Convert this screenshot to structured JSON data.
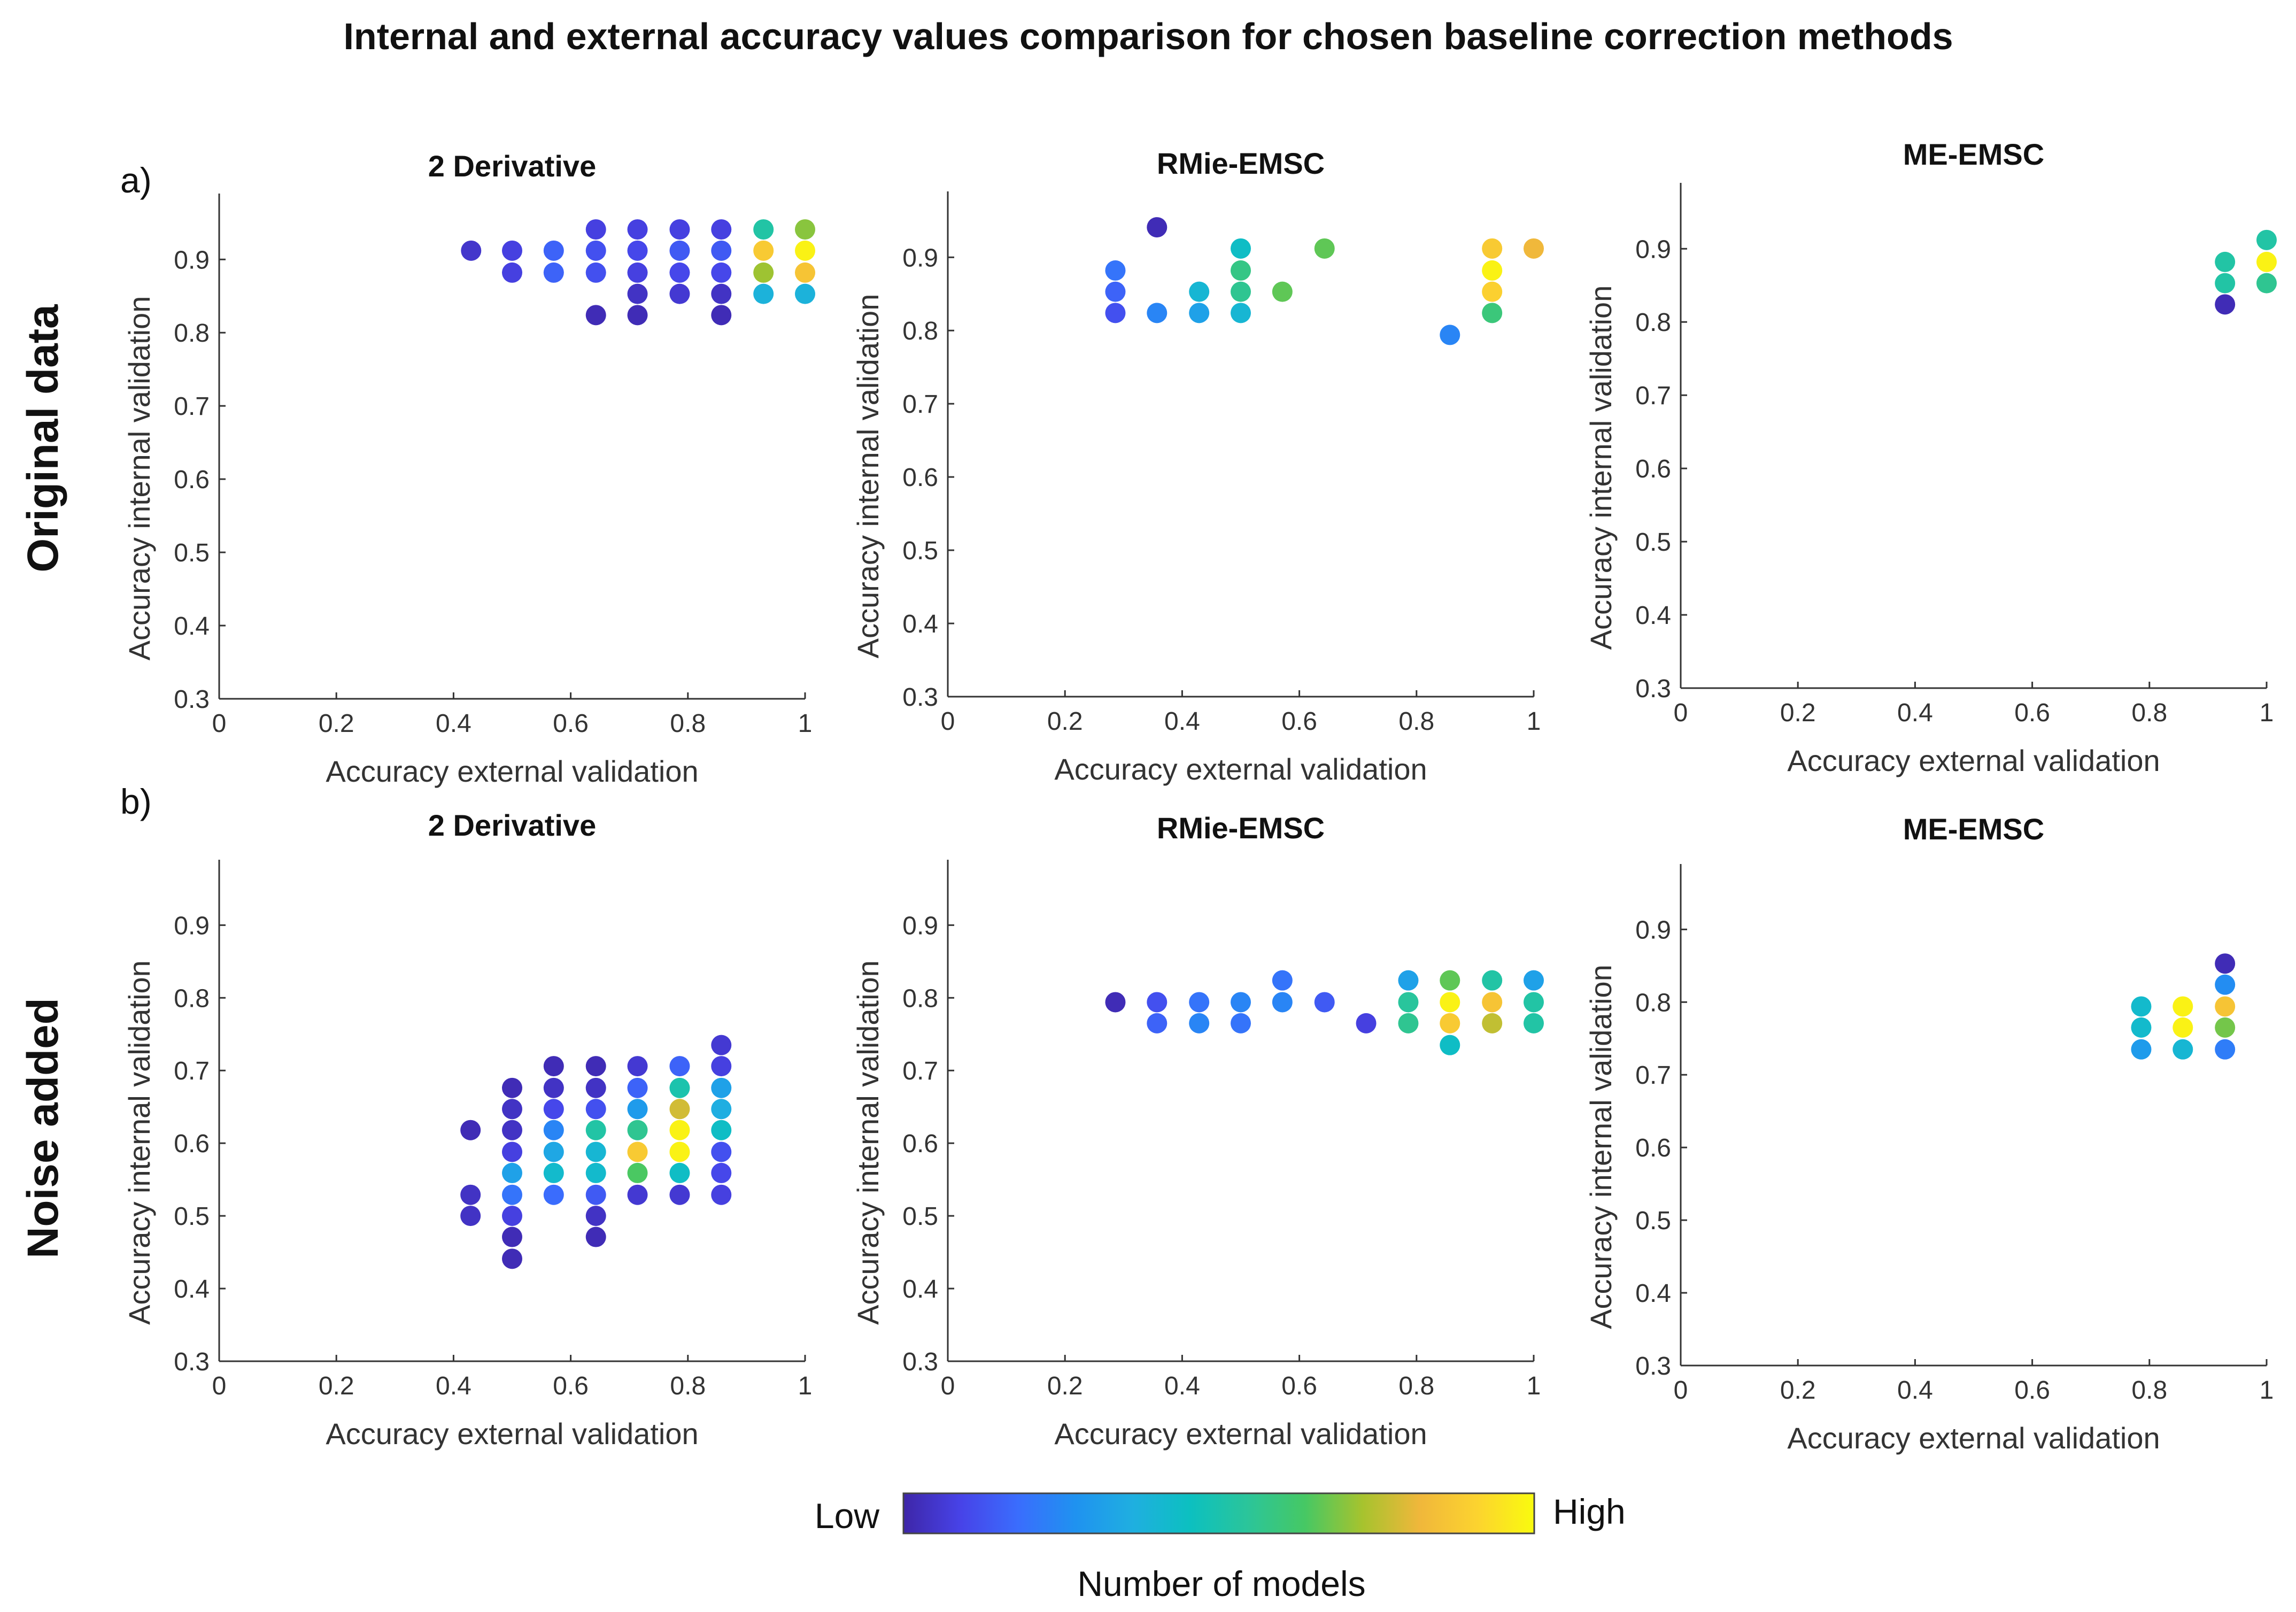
{
  "chart_data": {
    "title": "Internal and external accuracy values comparison for chosen baseline correction methods",
    "rows": [
      {
        "label": "Original data",
        "panel": "a)"
      },
      {
        "label": "Noise added",
        "panel": "b)"
      }
    ],
    "colorbar": {
      "label": "Number of models",
      "low_label": "Low",
      "high_label": "High",
      "colormap": [
        "#3e26a8",
        "#4743e8",
        "#3a6dfd",
        "#1f92f0",
        "#1fafe0",
        "#0cc0c0",
        "#2bc59a",
        "#46c864",
        "#a6c32e",
        "#f0b73b",
        "#fcd32f",
        "#f9fb0e"
      ]
    },
    "subplots": [
      {
        "type": "scatter",
        "row": 0,
        "col": 0,
        "title": "2 Derivative",
        "xlabel": "Accuracy external validation",
        "ylabel": "Accuracy internal validation",
        "xlim": [
          0,
          1
        ],
        "ylim": [
          0.3,
          0.99
        ],
        "xticks": [
          "0",
          "0.2",
          "0.4",
          "0.6",
          "0.8",
          "1"
        ],
        "yticks": [
          "0.3",
          "0.4",
          "0.5",
          "0.6",
          "0.7",
          "0.8",
          "0.9"
        ],
        "points": [
          [
            0.43,
            0.912,
            0.05
          ],
          [
            0.5,
            0.912,
            0.08
          ],
          [
            0.5,
            0.882,
            0.08
          ],
          [
            0.571,
            0.912,
            0.16
          ],
          [
            0.571,
            0.882,
            0.16
          ],
          [
            0.643,
            0.941,
            0.08
          ],
          [
            0.643,
            0.912,
            0.12
          ],
          [
            0.643,
            0.882,
            0.12
          ],
          [
            0.643,
            0.824,
            0.02
          ],
          [
            0.714,
            0.941,
            0.08
          ],
          [
            0.714,
            0.912,
            0.1
          ],
          [
            0.714,
            0.882,
            0.08
          ],
          [
            0.714,
            0.853,
            0.04
          ],
          [
            0.714,
            0.824,
            0.02
          ],
          [
            0.786,
            0.941,
            0.08
          ],
          [
            0.786,
            0.912,
            0.14
          ],
          [
            0.786,
            0.882,
            0.1
          ],
          [
            0.786,
            0.853,
            0.06
          ],
          [
            0.857,
            0.941,
            0.08
          ],
          [
            0.857,
            0.912,
            0.14
          ],
          [
            0.857,
            0.882,
            0.1
          ],
          [
            0.857,
            0.853,
            0.04
          ],
          [
            0.857,
            0.824,
            0.02
          ],
          [
            0.929,
            0.941,
            0.52
          ],
          [
            0.929,
            0.912,
            0.88
          ],
          [
            0.929,
            0.882,
            0.72
          ],
          [
            0.929,
            0.853,
            0.38
          ],
          [
            1.0,
            0.941,
            0.7
          ],
          [
            1.0,
            0.912,
            0.98
          ],
          [
            1.0,
            0.882,
            0.86
          ],
          [
            1.0,
            0.853,
            0.38
          ]
        ]
      },
      {
        "type": "scatter",
        "row": 0,
        "col": 1,
        "title": "RMie-EMSC",
        "xlabel": "Accuracy external validation",
        "ylabel": "Accuracy internal validation",
        "xlim": [
          0,
          1
        ],
        "ylim": [
          0.3,
          0.99
        ],
        "xticks": [
          "0",
          "0.2",
          "0.4",
          "0.6",
          "0.8",
          "1"
        ],
        "yticks": [
          "0.3",
          "0.4",
          "0.5",
          "0.6",
          "0.7",
          "0.8",
          "0.9"
        ],
        "points": [
          [
            0.286,
            0.882,
            0.2
          ],
          [
            0.286,
            0.853,
            0.16
          ],
          [
            0.286,
            0.824,
            0.12
          ],
          [
            0.357,
            0.941,
            0.02
          ],
          [
            0.357,
            0.824,
            0.24
          ],
          [
            0.429,
            0.853,
            0.4
          ],
          [
            0.429,
            0.824,
            0.32
          ],
          [
            0.5,
            0.912,
            0.44
          ],
          [
            0.5,
            0.882,
            0.58
          ],
          [
            0.5,
            0.853,
            0.56
          ],
          [
            0.5,
            0.824,
            0.4
          ],
          [
            0.571,
            0.853,
            0.66
          ],
          [
            0.643,
            0.912,
            0.66
          ],
          [
            0.857,
            0.794,
            0.24
          ],
          [
            0.929,
            0.912,
            0.88
          ],
          [
            0.929,
            0.882,
            0.98
          ],
          [
            0.929,
            0.853,
            0.9
          ],
          [
            0.929,
            0.824,
            0.6
          ],
          [
            1.0,
            0.912,
            0.82
          ]
        ]
      },
      {
        "type": "scatter",
        "row": 0,
        "col": 2,
        "title": "ME-EMSC",
        "xlabel": "Accuracy external validation",
        "ylabel": "Accuracy internal validation",
        "xlim": [
          0,
          1
        ],
        "ylim": [
          0.3,
          0.99
        ],
        "xticks": [
          "0",
          "0.2",
          "0.4",
          "0.6",
          "0.8",
          "1"
        ],
        "yticks": [
          "0.3",
          "0.4",
          "0.5",
          "0.6",
          "0.7",
          "0.8",
          "0.9"
        ],
        "points": [
          [
            0.929,
            0.882,
            0.52
          ],
          [
            0.929,
            0.853,
            0.52
          ],
          [
            0.929,
            0.824,
            0.02
          ],
          [
            1.0,
            0.912,
            0.52
          ],
          [
            1.0,
            0.882,
            0.98
          ],
          [
            1.0,
            0.853,
            0.56
          ]
        ]
      },
      {
        "type": "scatter",
        "row": 1,
        "col": 0,
        "title": "2 Derivative",
        "xlabel": "Accuracy external validation",
        "ylabel": "Accuracy internal validation",
        "xlim": [
          0,
          1
        ],
        "ylim": [
          0.3,
          0.99
        ],
        "xticks": [
          "0",
          "0.2",
          "0.4",
          "0.6",
          "0.8",
          "1"
        ],
        "yticks": [
          "0.3",
          "0.4",
          "0.5",
          "0.6",
          "0.7",
          "0.8",
          "0.9"
        ],
        "points": [
          [
            0.429,
            0.618,
            0.02
          ],
          [
            0.429,
            0.529,
            0.04
          ],
          [
            0.429,
            0.5,
            0.04
          ],
          [
            0.5,
            0.676,
            0.02
          ],
          [
            0.5,
            0.647,
            0.04
          ],
          [
            0.5,
            0.618,
            0.04
          ],
          [
            0.5,
            0.588,
            0.08
          ],
          [
            0.5,
            0.559,
            0.32
          ],
          [
            0.5,
            0.529,
            0.2
          ],
          [
            0.5,
            0.5,
            0.08
          ],
          [
            0.5,
            0.471,
            0.02
          ],
          [
            0.5,
            0.441,
            0.02
          ],
          [
            0.571,
            0.706,
            0.02
          ],
          [
            0.571,
            0.676,
            0.04
          ],
          [
            0.571,
            0.647,
            0.1
          ],
          [
            0.571,
            0.618,
            0.24
          ],
          [
            0.571,
            0.588,
            0.34
          ],
          [
            0.571,
            0.559,
            0.42
          ],
          [
            0.571,
            0.529,
            0.18
          ],
          [
            0.643,
            0.706,
            0.02
          ],
          [
            0.643,
            0.676,
            0.04
          ],
          [
            0.643,
            0.647,
            0.12
          ],
          [
            0.643,
            0.618,
            0.52
          ],
          [
            0.643,
            0.588,
            0.4
          ],
          [
            0.643,
            0.559,
            0.42
          ],
          [
            0.643,
            0.529,
            0.14
          ],
          [
            0.643,
            0.5,
            0.04
          ],
          [
            0.643,
            0.471,
            0.02
          ],
          [
            0.714,
            0.706,
            0.06
          ],
          [
            0.714,
            0.676,
            0.16
          ],
          [
            0.714,
            0.647,
            0.3
          ],
          [
            0.714,
            0.618,
            0.56
          ],
          [
            0.714,
            0.588,
            0.88
          ],
          [
            0.714,
            0.559,
            0.64
          ],
          [
            0.714,
            0.529,
            0.06
          ],
          [
            0.786,
            0.706,
            0.16
          ],
          [
            0.786,
            0.676,
            0.5
          ],
          [
            0.786,
            0.647,
            0.78
          ],
          [
            0.786,
            0.618,
            0.98
          ],
          [
            0.786,
            0.588,
            0.98
          ],
          [
            0.786,
            0.559,
            0.44
          ],
          [
            0.786,
            0.529,
            0.06
          ],
          [
            0.857,
            0.735,
            0.06
          ],
          [
            0.857,
            0.706,
            0.08
          ],
          [
            0.857,
            0.676,
            0.32
          ],
          [
            0.857,
            0.647,
            0.36
          ],
          [
            0.857,
            0.618,
            0.44
          ],
          [
            0.857,
            0.588,
            0.12
          ],
          [
            0.857,
            0.559,
            0.1
          ],
          [
            0.857,
            0.529,
            0.08
          ]
        ]
      },
      {
        "type": "scatter",
        "row": 1,
        "col": 1,
        "title": "RMie-EMSC",
        "xlabel": "Accuracy external validation",
        "ylabel": "Accuracy internal validation",
        "xlim": [
          0,
          1
        ],
        "ylim": [
          0.3,
          0.99
        ],
        "xticks": [
          "0",
          "0.2",
          "0.4",
          "0.6",
          "0.8",
          "1"
        ],
        "yticks": [
          "0.3",
          "0.4",
          "0.5",
          "0.6",
          "0.7",
          "0.8",
          "0.9"
        ],
        "points": [
          [
            0.286,
            0.794,
            0.02
          ],
          [
            0.357,
            0.794,
            0.12
          ],
          [
            0.357,
            0.765,
            0.16
          ],
          [
            0.429,
            0.794,
            0.2
          ],
          [
            0.429,
            0.765,
            0.24
          ],
          [
            0.5,
            0.794,
            0.24
          ],
          [
            0.5,
            0.765,
            0.2
          ],
          [
            0.571,
            0.824,
            0.2
          ],
          [
            0.571,
            0.794,
            0.24
          ],
          [
            0.643,
            0.794,
            0.14
          ],
          [
            0.714,
            0.765,
            0.08
          ],
          [
            0.786,
            0.824,
            0.32
          ],
          [
            0.786,
            0.794,
            0.54
          ],
          [
            0.786,
            0.765,
            0.56
          ],
          [
            0.857,
            0.824,
            0.66
          ],
          [
            0.857,
            0.794,
            0.98
          ],
          [
            0.857,
            0.765,
            0.88
          ],
          [
            0.857,
            0.735,
            0.44
          ],
          [
            0.929,
            0.824,
            0.52
          ],
          [
            0.929,
            0.794,
            0.86
          ],
          [
            0.929,
            0.765,
            0.76
          ],
          [
            1.0,
            0.824,
            0.32
          ],
          [
            1.0,
            0.794,
            0.52
          ],
          [
            1.0,
            0.765,
            0.52
          ]
        ]
      },
      {
        "type": "scatter",
        "row": 1,
        "col": 2,
        "title": "ME-EMSC",
        "xlabel": "Accuracy external validation",
        "ylabel": "Accuracy internal validation",
        "xlim": [
          0,
          1
        ],
        "ylim": [
          0.3,
          0.99
        ],
        "xticks": [
          "0",
          "0.2",
          "0.4",
          "0.6",
          "0.8",
          "1"
        ],
        "yticks": [
          "0.3",
          "0.4",
          "0.5",
          "0.6",
          "0.7",
          "0.8",
          "0.9"
        ],
        "points": [
          [
            0.786,
            0.794,
            0.42
          ],
          [
            0.786,
            0.765,
            0.42
          ],
          [
            0.786,
            0.735,
            0.3
          ],
          [
            0.857,
            0.794,
            0.98
          ],
          [
            0.857,
            0.765,
            0.98
          ],
          [
            0.857,
            0.735,
            0.4
          ],
          [
            0.929,
            0.853,
            0.02
          ],
          [
            0.929,
            0.824,
            0.26
          ],
          [
            0.929,
            0.794,
            0.86
          ],
          [
            0.929,
            0.765,
            0.68
          ],
          [
            0.929,
            0.735,
            0.22
          ]
        ]
      }
    ]
  }
}
